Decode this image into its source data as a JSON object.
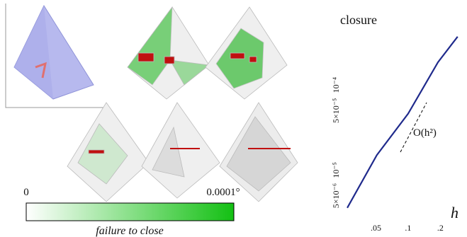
{
  "chart_data": {
    "type": "line",
    "title": "closure",
    "x_label": "h",
    "x": [
      0.027,
      0.051,
      0.1,
      0.19,
      0.29
    ],
    "series": [
      {
        "name": "closure",
        "color": "#1f2a8c",
        "values": [
          3.6e-06,
          1.5e-05,
          4.6e-05,
          0.000185,
          0.00037
        ]
      }
    ],
    "log_x": true,
    "log_y": true,
    "xlim": [
      0.025,
      0.3
    ],
    "ylim": [
      1.8e-06,
      0.00068
    ],
    "xticks": [
      {
        "value": 0.05,
        "label": ".05"
      },
      {
        "value": 0.1,
        "label": ".1"
      },
      {
        "value": 0.2,
        "label": ".2"
      }
    ],
    "yticks": [
      {
        "value": 5e-06,
        "label": "5×10⁻⁶"
      },
      {
        "value": 1e-05,
        "label": "10⁻⁵"
      },
      {
        "value": 5e-05,
        "label": "5×10⁻⁵"
      },
      {
        "value": 0.0001,
        "label": "10⁻⁴"
      }
    ],
    "annotations": [
      "O(h²)"
    ]
  },
  "colorbar": {
    "min_label": "0",
    "max_label": "0.0001°",
    "caption": "failure to close"
  }
}
